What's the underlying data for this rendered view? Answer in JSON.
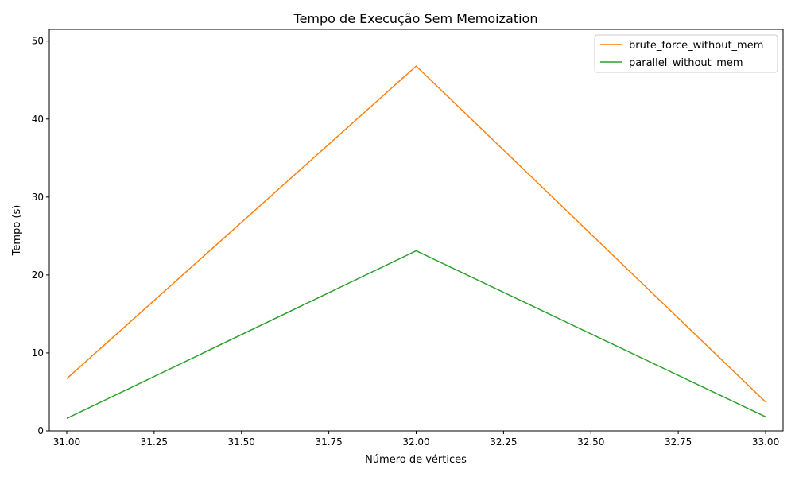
{
  "chart_data": {
    "type": "line",
    "title": "Tempo de Execução Sem Memoization",
    "xlabel": "Número de vértices",
    "ylabel": "Tempo (s)",
    "xlim": [
      30.95,
      33.05
    ],
    "ylim": [
      0,
      51.5
    ],
    "x_ticks": [
      31.0,
      31.25,
      31.5,
      31.75,
      32.0,
      32.25,
      32.5,
      32.75,
      33.0
    ],
    "x_tick_labels": [
      "31.00",
      "31.25",
      "31.50",
      "31.75",
      "32.00",
      "32.25",
      "32.50",
      "32.75",
      "33.00"
    ],
    "y_ticks": [
      0,
      10,
      20,
      30,
      40,
      50
    ],
    "y_tick_labels": [
      "0",
      "10",
      "20",
      "30",
      "40",
      "50"
    ],
    "grid": false,
    "legend_position": "top-right",
    "x": [
      31,
      32,
      33
    ],
    "series": [
      {
        "name": "brute_force_without_mem",
        "values": [
          6.7,
          46.8,
          3.7
        ],
        "color": "#ff7f0e"
      },
      {
        "name": "parallel_without_mem",
        "values": [
          1.6,
          23.1,
          1.8
        ],
        "color": "#2ca02c"
      }
    ]
  }
}
